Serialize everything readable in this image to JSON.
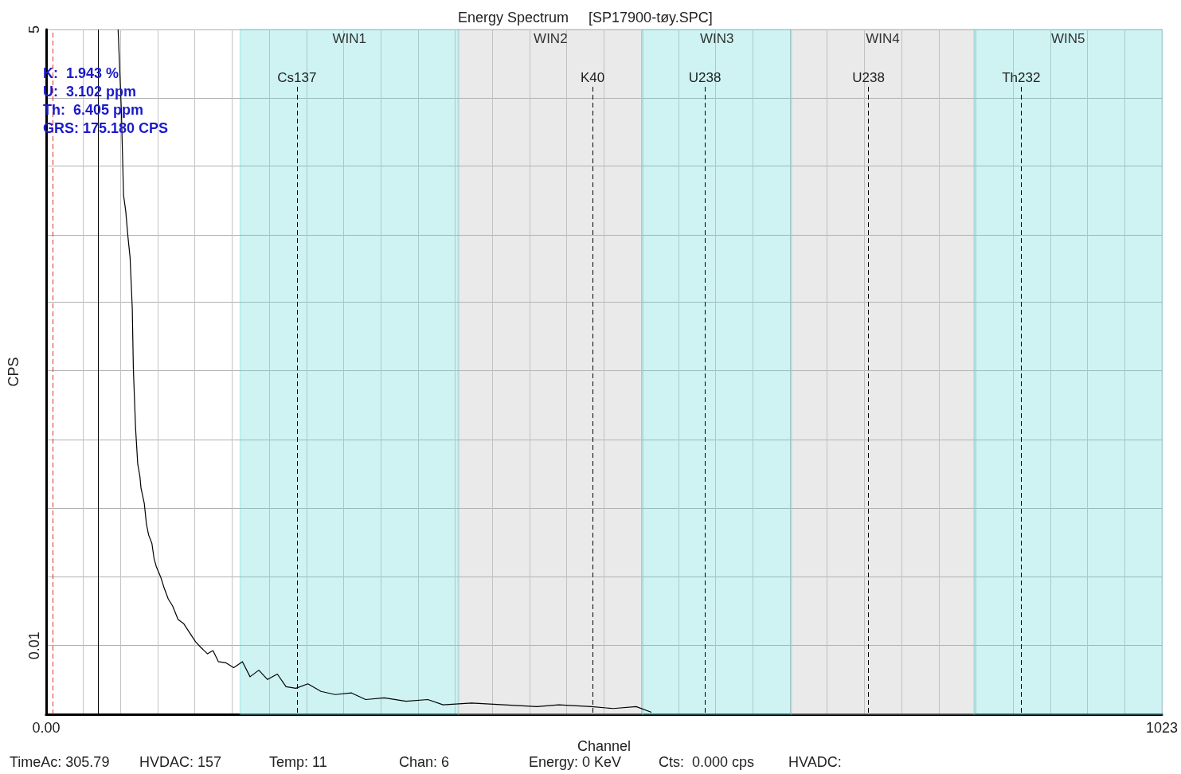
{
  "chart_data": {
    "type": "line",
    "title": "Energy Spectrum     [SP17900-tøy.SPC]",
    "xlabel": "Channel",
    "ylabel": "CPS",
    "log": "y",
    "grid": true,
    "marker": "none",
    "xlim": [
      0,
      1023
    ],
    "xticks": [
      {
        "value": 0,
        "label": "0.00"
      },
      {
        "value": 34.1,
        "label": null
      },
      {
        "value": 68.2,
        "label": null
      },
      {
        "value": 102.3,
        "label": null
      },
      {
        "value": 136.4,
        "label": null
      },
      {
        "value": 170.5,
        "label": null
      },
      {
        "value": 204.6,
        "label": null
      },
      {
        "value": 238.7,
        "label": null
      },
      {
        "value": 272.8,
        "label": null
      },
      {
        "value": 306.9,
        "label": null
      },
      {
        "value": 341,
        "label": null
      },
      {
        "value": 375.1,
        "label": null
      },
      {
        "value": 409.2,
        "label": null
      },
      {
        "value": 443.3,
        "label": null
      },
      {
        "value": 477.4,
        "label": null
      },
      {
        "value": 511.5,
        "label": null
      },
      {
        "value": 545.6,
        "label": null
      },
      {
        "value": 579.7,
        "label": null
      },
      {
        "value": 613.8,
        "label": null
      },
      {
        "value": 647.9,
        "label": null
      },
      {
        "value": 682,
        "label": null
      },
      {
        "value": 716.1,
        "label": null
      },
      {
        "value": 750.2,
        "label": null
      },
      {
        "value": 784.3,
        "label": null
      },
      {
        "value": 818.4,
        "label": null
      },
      {
        "value": 852.5,
        "label": null
      },
      {
        "value": 886.6,
        "label": null
      },
      {
        "value": 920.7,
        "label": null
      },
      {
        "value": 954.8,
        "label": null
      },
      {
        "value": 988.9,
        "label": null
      },
      1023
    ],
    "ylim": [
      0.005,
      5
    ],
    "yticks": [
      {
        "value": 0.02,
        "label": null
      },
      0.01,
      {
        "value": 0.04,
        "label": null
      },
      {
        "value": 0.08,
        "label": null
      },
      {
        "value": 0.16,
        "label": null
      },
      {
        "value": 0.32,
        "label": null
      },
      {
        "value": 0.63,
        "label": null
      },
      {
        "value": 1.26,
        "label": null
      },
      {
        "value": 2.5,
        "label": null
      },
      5
    ],
    "series": [
      {
        "color": "#000000",
        "x": [
          66,
          69,
          71,
          73,
          75,
          77,
          79,
          80,
          82,
          84,
          86,
          87,
          90,
          92,
          94,
          97,
          99,
          101,
          105,
          108,
          112,
          116,
          121,
          126,
          131,
          137,
          142,
          148,
          153,
          158,
          165,
          172,
          180,
          187,
          195,
          203,
          212,
          220,
          229,
          240,
          252,
          265,
          280,
          293,
          310,
          330,
          350,
          364,
          390,
          420,
          450,
          470,
          500,
          520,
          541,
          555
        ],
        "values": [
          5,
          2.2,
          0.94,
          0.8,
          0.62,
          0.5,
          0.3,
          0.163,
          0.09,
          0.0625,
          0.055,
          0.049,
          0.042,
          0.034,
          0.0305,
          0.028,
          0.024,
          0.0222,
          0.02,
          0.018,
          0.016,
          0.0149,
          0.013,
          0.0125,
          0.0115,
          0.0104,
          0.0098,
          0.0092,
          0.0095,
          0.0085,
          0.0084,
          0.008,
          0.0085,
          0.0073,
          0.0078,
          0.0071,
          0.0075,
          0.0066,
          0.0065,
          0.0068,
          0.0063,
          0.0061,
          0.0062,
          0.0058,
          0.0059,
          0.0057,
          0.0058,
          0.0055,
          0.0056,
          0.0055,
          0.0054,
          0.0055,
          0.0054,
          0.0053,
          0.0054,
          0.0051
        ]
      }
    ],
    "bands": [
      {
        "axis": "x",
        "from": 178,
        "to": 378,
        "label": "WIN1",
        "color": "#5fd8d8"
      },
      {
        "axis": "x",
        "from": 378,
        "to": 547,
        "label": "WIN2",
        "color": "#b8b8b8"
      },
      {
        "axis": "x",
        "from": 547,
        "to": 683,
        "label": "WIN3",
        "color": "#5fd8d8"
      },
      {
        "axis": "x",
        "from": 683,
        "to": 851,
        "label": "WIN4",
        "color": "#b8b8b8"
      },
      {
        "axis": "x",
        "from": 851,
        "to": 1023,
        "label": "WIN5",
        "color": "#5fd8d8"
      }
    ],
    "ref_lines": [
      {
        "axis": "x",
        "value": 6,
        "label": null,
        "color": "#e03030",
        "line_style": "dashed"
      },
      {
        "axis": "x",
        "value": 48,
        "label": null,
        "color": "#000000",
        "line_style": "solid"
      },
      {
        "axis": "x",
        "value": 230,
        "label": "Cs137",
        "color": "#000000",
        "line_style": "dashed"
      },
      {
        "axis": "x",
        "value": 501,
        "label": "K40",
        "color": "#000000",
        "line_style": "dashed"
      },
      {
        "axis": "x",
        "value": 604,
        "label": "U238",
        "color": "#000000",
        "line_style": "dashed"
      },
      {
        "axis": "x",
        "value": 754,
        "label": "U238",
        "color": "#000000",
        "line_style": "dashed"
      },
      {
        "axis": "x",
        "value": 894,
        "label": "Th232",
        "color": "#000000",
        "line_style": "dashed"
      }
    ],
    "annotations": [
      "K:  1.943 %\nU:  3.102 ppm\nTh:  6.405 ppm\nGRS: 175.180 CPS",
      "TimeAc: 305.79",
      "HVDAC: 157",
      "Temp: 11",
      "Chan: 6",
      "Energy: 0 KeV",
      "Cts:  0.000 cps",
      "HVADC:"
    ]
  }
}
